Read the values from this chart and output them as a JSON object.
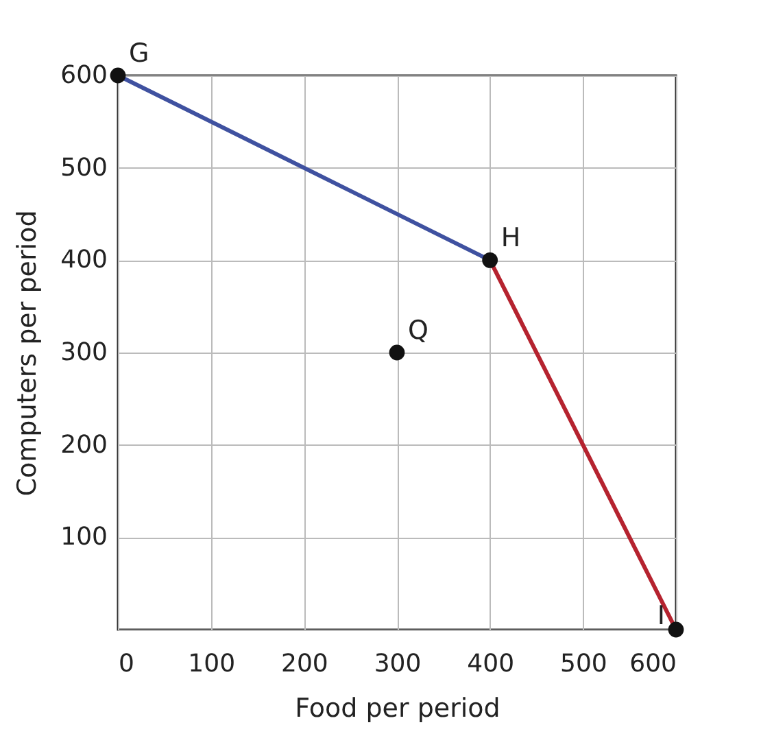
{
  "chart_data": {
    "type": "line",
    "xlabel": "Food per period",
    "ylabel": "Computers per period",
    "series": [
      {
        "x": [
          0,
          400
        ],
        "values": [
          600,
          400
        ],
        "color": "#3f51a0"
      },
      {
        "x": [
          400,
          600
        ],
        "values": [
          400,
          0
        ],
        "color": "#b5232f"
      },
      {
        "type": "scatter",
        "x": [
          0,
          400,
          300,
          600
        ],
        "values": [
          600,
          400,
          300,
          0
        ],
        "color": "#111111",
        "marker": "circle"
      }
    ],
    "annotations": [
      {
        "text": "G",
        "x": 0,
        "y": 600
      },
      {
        "text": "H",
        "x": 400,
        "y": 400
      },
      {
        "text": "Q",
        "x": 300,
        "y": 300
      },
      {
        "text": "I",
        "x": 600,
        "y": 0
      }
    ],
    "xlim": [
      0,
      600
    ],
    "ylim": [
      0,
      600
    ],
    "xticks": [
      0,
      100,
      200,
      300,
      400,
      500,
      600
    ],
    "yticks": [
      {
        "value": 0,
        "label": null
      },
      100,
      200,
      300,
      400,
      500,
      600
    ],
    "grid": true,
    "line_style": "solid"
  }
}
